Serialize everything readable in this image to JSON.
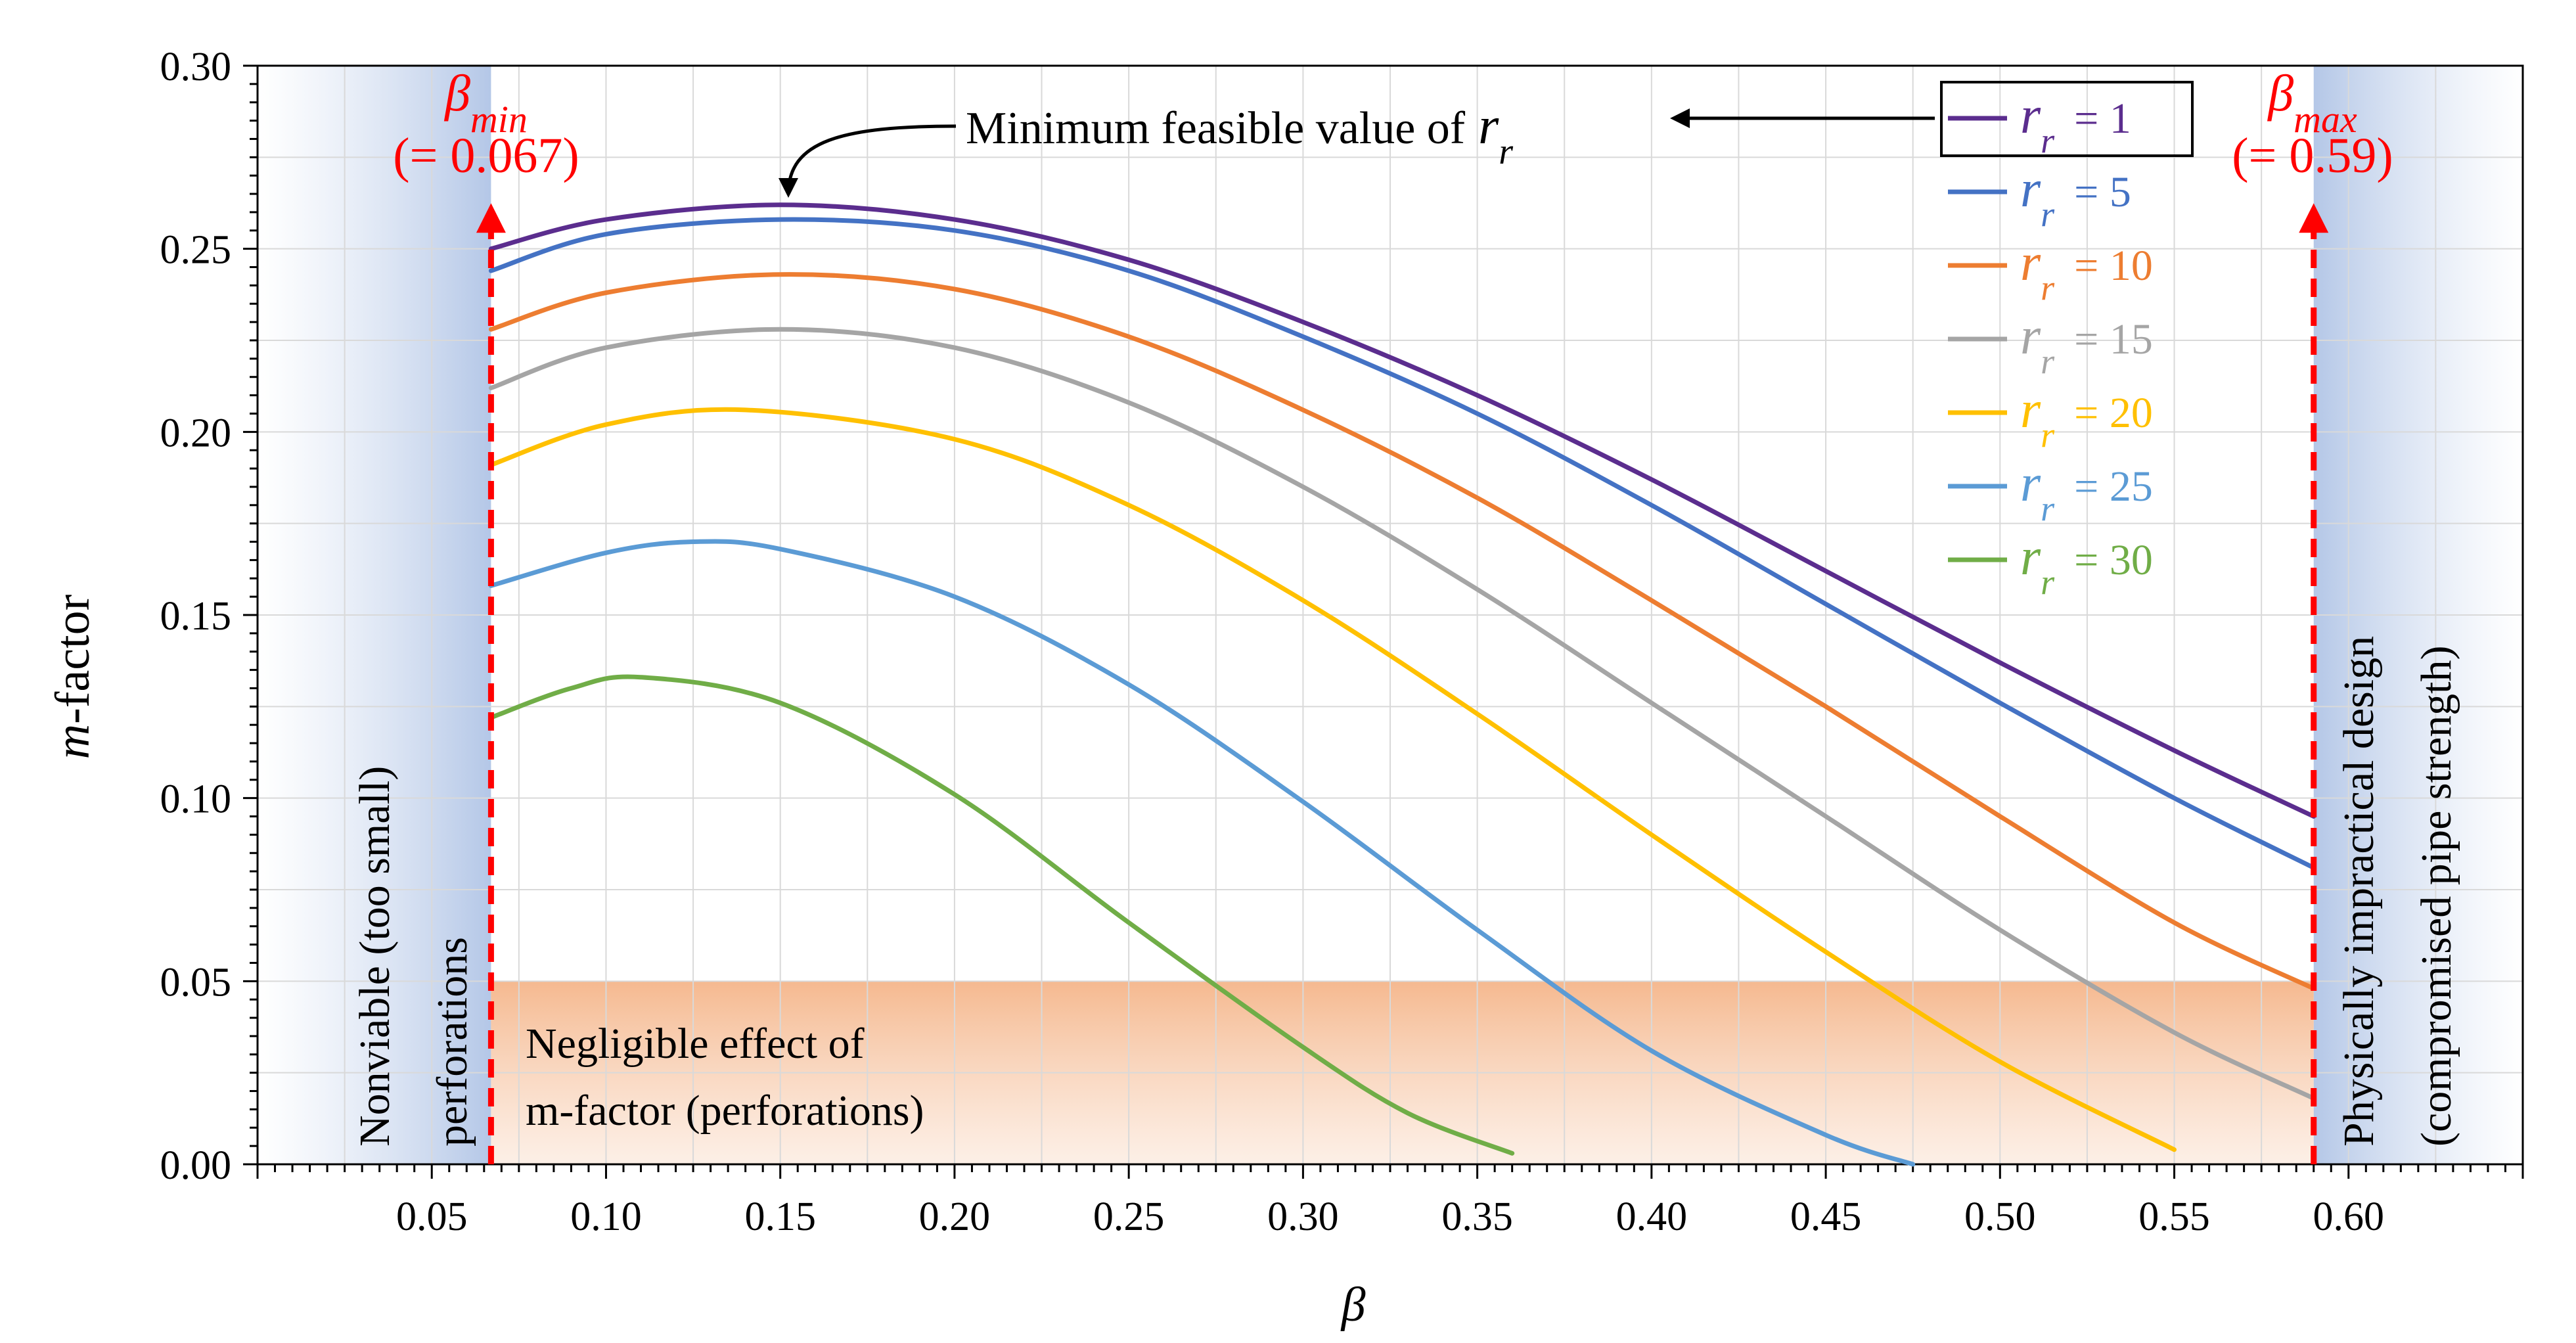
{
  "chart_data": {
    "type": "line",
    "xlabel": "β",
    "ylabel_italic": "m",
    "ylabel_rest": "-factor",
    "xlim": [
      0.0,
      0.65
    ],
    "ylim": [
      0.0,
      0.3
    ],
    "x_ticks": [
      "0.05",
      "0.10",
      "0.15",
      "0.20",
      "0.25",
      "0.30",
      "0.35",
      "0.40",
      "0.45",
      "0.50",
      "0.55",
      "0.60"
    ],
    "x_tick_values": [
      0.05,
      0.1,
      0.15,
      0.2,
      0.25,
      0.3,
      0.35,
      0.4,
      0.45,
      0.5,
      0.55,
      0.6
    ],
    "y_ticks": [
      "0.00",
      "0.05",
      "0.10",
      "0.15",
      "0.20",
      "0.25",
      "0.30"
    ],
    "y_tick_values": [
      0.0,
      0.05,
      0.1,
      0.15,
      0.2,
      0.25,
      0.3
    ],
    "grid": true,
    "legend_position": "top-right",
    "series": [
      {
        "name": "1",
        "legend_var": "r",
        "legend_sub": "r",
        "legend_value": "= 1",
        "color": "#5b2d8e",
        "x": [
          0.067,
          0.1,
          0.15,
          0.2,
          0.25,
          0.3,
          0.35,
          0.4,
          0.45,
          0.5,
          0.55,
          0.59
        ],
        "y": [
          0.25,
          0.258,
          0.262,
          0.258,
          0.247,
          0.23,
          0.21,
          0.187,
          0.162,
          0.137,
          0.113,
          0.095
        ]
      },
      {
        "name": "5",
        "legend_var": "r",
        "legend_sub": "r",
        "legend_value": "= 5",
        "color": "#4472c4",
        "x": [
          0.067,
          0.1,
          0.15,
          0.2,
          0.25,
          0.3,
          0.35,
          0.4,
          0.45,
          0.5,
          0.55,
          0.59
        ],
        "y": [
          0.244,
          0.254,
          0.258,
          0.255,
          0.244,
          0.226,
          0.205,
          0.18,
          0.153,
          0.126,
          0.1,
          0.081
        ]
      },
      {
        "name": "10",
        "legend_var": "r",
        "legend_sub": "r",
        "legend_value": "= 10",
        "color": "#ed7d31",
        "x": [
          0.067,
          0.1,
          0.15,
          0.2,
          0.25,
          0.3,
          0.35,
          0.4,
          0.45,
          0.5,
          0.55,
          0.59
        ],
        "y": [
          0.228,
          0.238,
          0.243,
          0.239,
          0.226,
          0.206,
          0.182,
          0.154,
          0.125,
          0.095,
          0.066,
          0.048
        ]
      },
      {
        "name": "15",
        "legend_var": "r",
        "legend_sub": "r",
        "legend_value": "= 15",
        "color": "#a5a5a5",
        "x": [
          0.067,
          0.1,
          0.15,
          0.2,
          0.25,
          0.3,
          0.35,
          0.4,
          0.45,
          0.5,
          0.55,
          0.59
        ],
        "y": [
          0.212,
          0.223,
          0.228,
          0.223,
          0.208,
          0.185,
          0.157,
          0.126,
          0.095,
          0.064,
          0.036,
          0.018
        ]
      },
      {
        "name": "20",
        "legend_var": "r",
        "legend_sub": "r",
        "legend_value": "= 20",
        "color": "#ffc000",
        "x": [
          0.067,
          0.1,
          0.14,
          0.2,
          0.25,
          0.3,
          0.35,
          0.4,
          0.45,
          0.5,
          0.55
        ],
        "y": [
          0.191,
          0.202,
          0.206,
          0.198,
          0.18,
          0.154,
          0.123,
          0.09,
          0.058,
          0.028,
          0.004
        ]
      },
      {
        "name": "25",
        "legend_var": "r",
        "legend_sub": "r",
        "legend_value": "= 25",
        "color": "#5b9bd5",
        "x": [
          0.067,
          0.1,
          0.125,
          0.15,
          0.2,
          0.25,
          0.3,
          0.35,
          0.4,
          0.45,
          0.475
        ],
        "y": [
          0.158,
          0.167,
          0.17,
          0.168,
          0.155,
          0.131,
          0.099,
          0.064,
          0.031,
          0.008,
          0.0
        ]
      },
      {
        "name": "30",
        "legend_var": "r",
        "legend_sub": "r",
        "legend_value": "= 30",
        "color": "#70ad47",
        "x": [
          0.067,
          0.09,
          0.11,
          0.15,
          0.2,
          0.25,
          0.3,
          0.33,
          0.36
        ],
        "y": [
          0.122,
          0.13,
          0.133,
          0.126,
          0.101,
          0.066,
          0.032,
          0.014,
          0.003
        ]
      }
    ],
    "annotations": {
      "beta_min_label": "β",
      "beta_min_sub": "min",
      "beta_min_value": "(= 0.067)",
      "beta_min_x": 0.067,
      "beta_max_label": "β",
      "beta_max_sub": "max",
      "beta_max_value": "(= 0.59)",
      "beta_max_x": 0.59,
      "min_feasible_text": "Minimum feasible value of",
      "min_feasible_var": "r",
      "min_feasible_sub": "r",
      "min_feasible_point": [
        0.15,
        0.262
      ],
      "left_region_line1": "Nonviable (too small)",
      "left_region_line2": "perforations",
      "right_region_line1": "Physically impractical design",
      "right_region_line2": "(compromised pipe strength)",
      "negligible_line1": "Negligible effect of",
      "negligible_line2": "m-factor (perforations)",
      "negligible_ymax": 0.05
    },
    "colors": {
      "limit_line": "#ff0000",
      "side_region": "#b4c7e7",
      "negligible_region": "#f4b183"
    }
  }
}
